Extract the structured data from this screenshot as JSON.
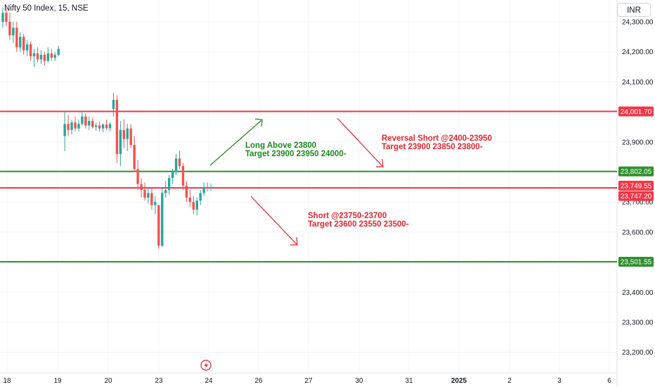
{
  "header": {
    "symbol_title": "Nifty 50 Index, 15, NSE",
    "currency": "INR"
  },
  "annotations": [
    {
      "id": "long",
      "color": "green",
      "lines": [
        "Long Above 23800",
        "Target 23900 23950 24000-"
      ]
    },
    {
      "id": "reversal",
      "color": "red",
      "lines": [
        "Reversal Short @2400-23950",
        "Target 23900 23850 23800-"
      ]
    },
    {
      "id": "short",
      "color": "red",
      "lines": [
        "Short @23750-23700",
        "Target 23600 23550 23500-"
      ]
    }
  ],
  "colors": {
    "up": "#26a69a",
    "down": "#ef5350",
    "resistance": "#f23645",
    "support": "#2f8f2f",
    "grid": "#f0f3fa"
  },
  "chart_data": {
    "type": "candlestick",
    "title": "Nifty 50 Index, 15, NSE",
    "ylim": [
      23150,
      24360
    ],
    "y_ticks": [
      "24,300.00",
      "24,200.00",
      "24,100.00",
      "23,900.00",
      "23,700.00",
      "23,600.00",
      "23,400.00",
      "23,300.00",
      "23,200.00"
    ],
    "y_tick_values": [
      24300,
      24200,
      24100,
      23900,
      23700,
      23600,
      23400,
      23300,
      23200
    ],
    "x_ticks": [
      "18",
      "19",
      "20",
      "23",
      "24",
      "26",
      "27",
      "30",
      "31",
      "2025",
      "2",
      "3",
      "6"
    ],
    "x_tick_bold": [
      "2025"
    ],
    "grid": true,
    "horizontal_levels": [
      {
        "value": 24001.7,
        "label": "24,001.70",
        "color": "red"
      },
      {
        "value": 23802.05,
        "label": "23,802.05",
        "color": "green"
      },
      {
        "value": 23747.2,
        "label": "23,747.20",
        "color": "red"
      },
      {
        "value": 23501.55,
        "label": "23,501.55",
        "color": "green"
      }
    ],
    "last_price": {
      "value": 23749.55,
      "label": "23,749.55"
    },
    "ohlc": [
      [
        24300,
        24348,
        24280,
        24330
      ],
      [
        24330,
        24345,
        24285,
        24300
      ],
      [
        24300,
        24330,
        24240,
        24255
      ],
      [
        24255,
        24300,
        24230,
        24280
      ],
      [
        24280,
        24300,
        24200,
        24215
      ],
      [
        24215,
        24265,
        24200,
        24250
      ],
      [
        24250,
        24260,
        24190,
        24205
      ],
      [
        24205,
        24240,
        24185,
        24225
      ],
      [
        24225,
        24235,
        24170,
        24185
      ],
      [
        24185,
        24210,
        24150,
        24195
      ],
      [
        24195,
        24215,
        24165,
        24175
      ],
      [
        24175,
        24205,
        24160,
        24190
      ],
      [
        24190,
        24200,
        24155,
        24170
      ],
      [
        24170,
        24215,
        24165,
        24195
      ],
      [
        24195,
        24210,
        24170,
        24180
      ],
      [
        24180,
        24200,
        24170,
        24190
      ],
      [
        24190,
        24220,
        24185,
        24210
      ],
      [
        23920,
        24000,
        23870,
        23960
      ],
      [
        23960,
        23990,
        23920,
        23940
      ],
      [
        23940,
        23975,
        23925,
        23965
      ],
      [
        23965,
        23985,
        23935,
        23945
      ],
      [
        23945,
        23975,
        23935,
        23960
      ],
      [
        23960,
        24000,
        23955,
        23985
      ],
      [
        23985,
        23995,
        23945,
        23955
      ],
      [
        23955,
        23985,
        23940,
        23970
      ],
      [
        23970,
        23980,
        23945,
        23950
      ],
      [
        23950,
        23965,
        23938,
        23955
      ],
      [
        23955,
        23968,
        23935,
        23945
      ],
      [
        23945,
        23962,
        23932,
        23958
      ],
      [
        23958,
        23975,
        23940,
        23946
      ],
      [
        23946,
        23965,
        23935,
        23960
      ],
      [
        24010,
        24064,
        23985,
        24040
      ],
      [
        24040,
        24055,
        23830,
        23860
      ],
      [
        23860,
        23970,
        23820,
        23940
      ],
      [
        23940,
        23975,
        23880,
        23910
      ],
      [
        23910,
        23960,
        23870,
        23945
      ],
      [
        23945,
        23960,
        23880,
        23890
      ],
      [
        23890,
        23920,
        23800,
        23810
      ],
      [
        23810,
        23840,
        23740,
        23760
      ],
      [
        23760,
        23780,
        23715,
        23740
      ],
      [
        23740,
        23765,
        23705,
        23715
      ],
      [
        23715,
        23750,
        23695,
        23730
      ],
      [
        23730,
        23745,
        23675,
        23690
      ],
      [
        23690,
        23720,
        23660,
        23700
      ],
      [
        23690,
        23690,
        23545,
        23555
      ],
      [
        23555,
        23745,
        23550,
        23730
      ],
      [
        23730,
        23770,
        23715,
        23740
      ],
      [
        23740,
        23790,
        23725,
        23780
      ],
      [
        23780,
        23810,
        23760,
        23800
      ],
      [
        23800,
        23860,
        23790,
        23845
      ],
      [
        23845,
        23870,
        23810,
        23820
      ],
      [
        23820,
        23830,
        23740,
        23755
      ],
      [
        23755,
        23770,
        23700,
        23715
      ],
      [
        23715,
        23740,
        23685,
        23700
      ],
      [
        23700,
        23720,
        23660,
        23675
      ],
      [
        23675,
        23715,
        23655,
        23705
      ],
      [
        23705,
        23740,
        23690,
        23730
      ],
      [
        23730,
        23765,
        23720,
        23750
      ],
      [
        23750,
        23765,
        23735,
        23745
      ],
      [
        23745,
        23762,
        23738,
        23749.55
      ]
    ]
  }
}
